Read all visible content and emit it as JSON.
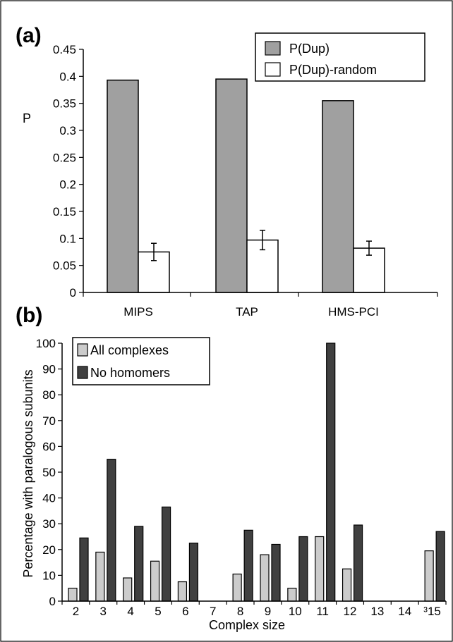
{
  "colors": {
    "bar_gray": "#a0a0a0",
    "bar_white": "#ffffff",
    "bar_light": "#cccccc",
    "bar_dark": "#404040",
    "ink": "#000000"
  },
  "chart_data": [
    {
      "panel_label": "(a)",
      "type": "bar",
      "ylabel": "P",
      "xlabel": "",
      "categories": [
        "MIPS",
        "TAP",
        "HMS-PCI"
      ],
      "ylim": [
        0,
        0.45
      ],
      "yticks": [
        "0",
        "0.05",
        "0.1",
        "0.15",
        "0.2",
        "0.25",
        "0.3",
        "0.35",
        "0.4",
        "0.45"
      ],
      "grid": false,
      "legend_position": "top-right",
      "series": [
        {
          "name": "P(Dup)",
          "color": "#a0a0a0",
          "values": [
            0.393,
            0.395,
            0.355
          ]
        },
        {
          "name": "P(Dup)-random",
          "color": "#ffffff",
          "values": [
            0.075,
            0.097,
            0.082
          ],
          "errors": [
            0.016,
            0.018,
            0.013
          ]
        }
      ]
    },
    {
      "panel_label": "(b)",
      "type": "bar",
      "ylabel": "Percentage with paralogous subunits",
      "xlabel": "Complex size",
      "categories": [
        "2",
        "3",
        "4",
        "5",
        "6",
        "7",
        "8",
        "9",
        "10",
        "11",
        "12",
        "13",
        "14",
        "³15"
      ],
      "ylim": [
        0,
        100
      ],
      "yticks": [
        "0",
        "10",
        "20",
        "30",
        "40",
        "50",
        "60",
        "70",
        "80",
        "90",
        "100"
      ],
      "grid": false,
      "legend_position": "top-left",
      "series": [
        {
          "name": "All complexes",
          "color": "#cccccc",
          "values": [
            5,
            19,
            9,
            15.5,
            7.5,
            0,
            10.5,
            18,
            5,
            25,
            12.5,
            0,
            0,
            19.5
          ]
        },
        {
          "name": "No homomers",
          "color": "#404040",
          "values": [
            24.5,
            55,
            29,
            36.5,
            22.5,
            0,
            27.5,
            22,
            25,
            100,
            29.5,
            0,
            0,
            27
          ]
        }
      ]
    }
  ]
}
